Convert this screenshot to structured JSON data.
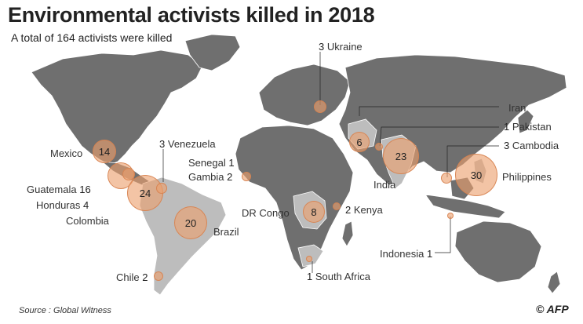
{
  "title": "Environmental activists killed in 2018",
  "subtitle": "A total of 164 activists were killed",
  "source": "Source : Global Witness",
  "credit": "© AFP",
  "colors": {
    "land": "#6f6f6f",
    "highlight_land": "#bdbdbd",
    "bubble": "#eba06e",
    "leader": "#e08a4f",
    "ocean": "#ffffff"
  },
  "countries": [
    {
      "name": "Mexico",
      "count": 14
    },
    {
      "name": "Guatemala",
      "count": 16
    },
    {
      "name": "Honduras",
      "count": 4
    },
    {
      "name": "Colombia",
      "count": 24
    },
    {
      "name": "Venezuela",
      "count": 3
    },
    {
      "name": "Brazil",
      "count": 20
    },
    {
      "name": "Chile",
      "count": 2
    },
    {
      "name": "Senegal",
      "count": 1
    },
    {
      "name": "Gambia",
      "count": 2
    },
    {
      "name": "DR Congo",
      "count": 8
    },
    {
      "name": "Kenya",
      "count": 2
    },
    {
      "name": "South Africa",
      "count": 1
    },
    {
      "name": "Ukraine",
      "count": 3
    },
    {
      "name": "Iran",
      "count": 6
    },
    {
      "name": "Pakistan",
      "count": 1
    },
    {
      "name": "India",
      "count": 23
    },
    {
      "name": "Cambodia",
      "count": 3
    },
    {
      "name": "Philippines",
      "count": 30
    },
    {
      "name": "Indonesia",
      "count": 1
    }
  ]
}
